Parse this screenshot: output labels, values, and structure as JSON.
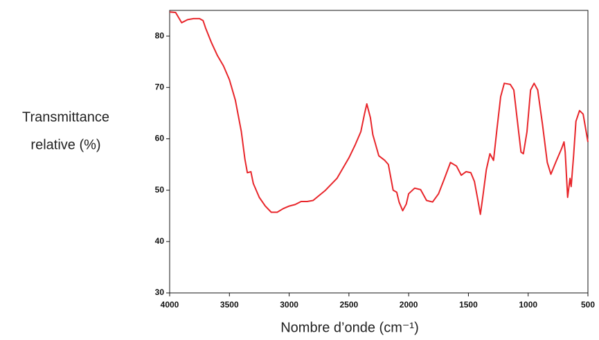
{
  "chart_data": {
    "type": "line",
    "x_label": "Nombre d’onde (cm⁻¹)",
    "y_label": [
      "Transmittance",
      "relative (%)"
    ],
    "xlim": [
      4000,
      500
    ],
    "ylim": [
      30,
      85
    ],
    "xticks": [
      4000,
      3500,
      3000,
      2500,
      2000,
      1500,
      1000,
      500
    ],
    "yticks": [
      30,
      40,
      50,
      60,
      70,
      80
    ],
    "x": [
      4000,
      3950,
      3900,
      3850,
      3800,
      3750,
      3720,
      3700,
      3650,
      3600,
      3550,
      3500,
      3450,
      3400,
      3370,
      3350,
      3320,
      3300,
      3250,
      3200,
      3150,
      3100,
      3050,
      3000,
      2950,
      2900,
      2850,
      2800,
      2700,
      2600,
      2500,
      2450,
      2400,
      2370,
      2350,
      2320,
      2300,
      2250,
      2200,
      2170,
      2130,
      2100,
      2080,
      2050,
      2020,
      2000,
      1950,
      1900,
      1850,
      1800,
      1750,
      1700,
      1650,
      1600,
      1560,
      1520,
      1480,
      1450,
      1420,
      1400,
      1380,
      1350,
      1320,
      1290,
      1260,
      1230,
      1200,
      1150,
      1120,
      1090,
      1060,
      1040,
      1010,
      980,
      950,
      920,
      880,
      840,
      810,
      770,
      720,
      700,
      690,
      670,
      650,
      640,
      620,
      600,
      570,
      540,
      500
    ],
    "series": [
      {
        "color": "#e8252a",
        "values": [
          84.7,
          84.6,
          82.6,
          83.2,
          83.4,
          83.4,
          83,
          81.6,
          78.7,
          76.2,
          74.2,
          71.5,
          67.5,
          61.4,
          56,
          53.4,
          53.6,
          51.3,
          48.6,
          46.9,
          45.7,
          45.7,
          46.4,
          46.9,
          47.2,
          47.8,
          47.8,
          48,
          49.9,
          52.3,
          56.3,
          58.7,
          61.4,
          64.8,
          66.8,
          64.1,
          60.8,
          56.7,
          55.8,
          55,
          50,
          49.6,
          47.7,
          46,
          47.3,
          49.3,
          50.4,
          50.1,
          48,
          47.7,
          49.3,
          52.3,
          55.4,
          54.7,
          52.9,
          53.6,
          53.4,
          51.7,
          48,
          45.3,
          48.6,
          54,
          57.1,
          55.8,
          62.1,
          68.2,
          70.8,
          70.6,
          69.5,
          63.4,
          57.4,
          57.1,
          61.4,
          69.5,
          70.8,
          69.5,
          62.8,
          55.4,
          53.1,
          55.4,
          58.1,
          59.4,
          57.4,
          48.6,
          52.3,
          50.7,
          56.7,
          63.4,
          65.5,
          64.8,
          59.4
        ]
      }
    ]
  }
}
